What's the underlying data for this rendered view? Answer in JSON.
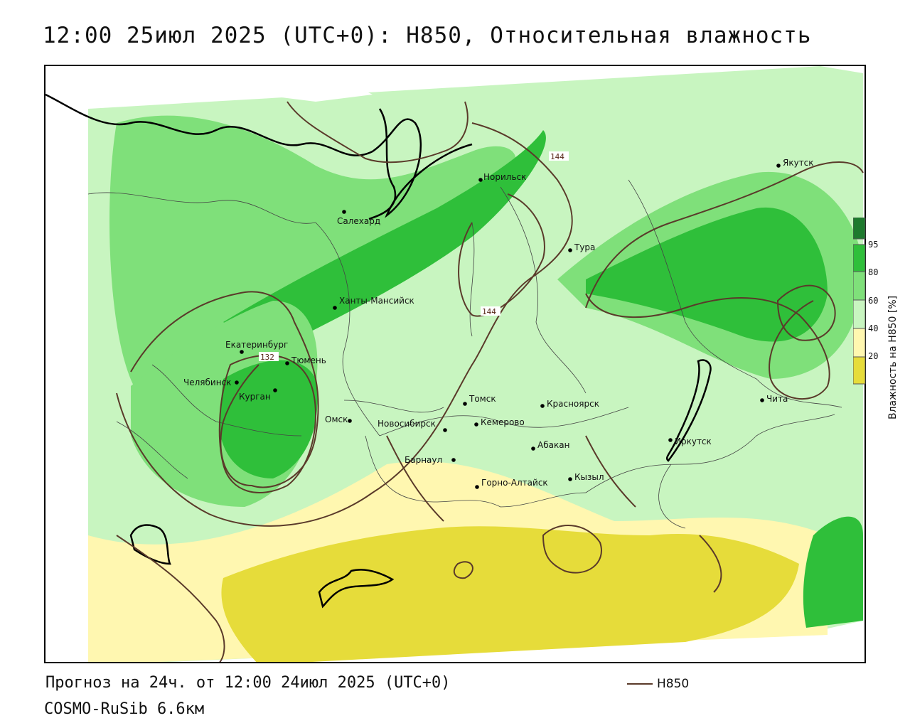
{
  "title": "12:00 25июл 2025 (UTC+0): H850, Относительная влажность",
  "legend": {
    "title": "Влажность на H850 [%]",
    "ticks": [
      "95",
      "80",
      "60",
      "40",
      "20"
    ],
    "colors": {
      "95_plus": "#1e7a2e",
      "80_95": "#2fbf3a",
      "60_80": "#7fe07a",
      "40_60": "#c8f5c0",
      "20_40": "#fff7b0",
      "0_20": "#e6dc3a"
    }
  },
  "line_legend": {
    "label": "H850",
    "color": "#5a3a2a"
  },
  "contour_labels": [
    "144",
    "144",
    "132"
  ],
  "cities": [
    {
      "name": "Якутск"
    },
    {
      "name": "Норильск"
    },
    {
      "name": "Салехард"
    },
    {
      "name": "Тура"
    },
    {
      "name": "Ханты-Мансийск"
    },
    {
      "name": "Екатеринбург"
    },
    {
      "name": "Тюмень"
    },
    {
      "name": "Челябинск"
    },
    {
      "name": "Курган"
    },
    {
      "name": "Омск"
    },
    {
      "name": "Томск"
    },
    {
      "name": "Красноярск"
    },
    {
      "name": "Новосибирск"
    },
    {
      "name": "Кемерово"
    },
    {
      "name": "Абакан"
    },
    {
      "name": "Барнаул"
    },
    {
      "name": "Горно-Алтайск"
    },
    {
      "name": "Кызыл"
    },
    {
      "name": "Иркутск"
    },
    {
      "name": "Чита"
    }
  ],
  "footer": {
    "forecast": "Прогноз на 24ч. от 12:00 24июл 2025 (UTC+0)",
    "model": "COSMO-RuSib 6.6км"
  }
}
